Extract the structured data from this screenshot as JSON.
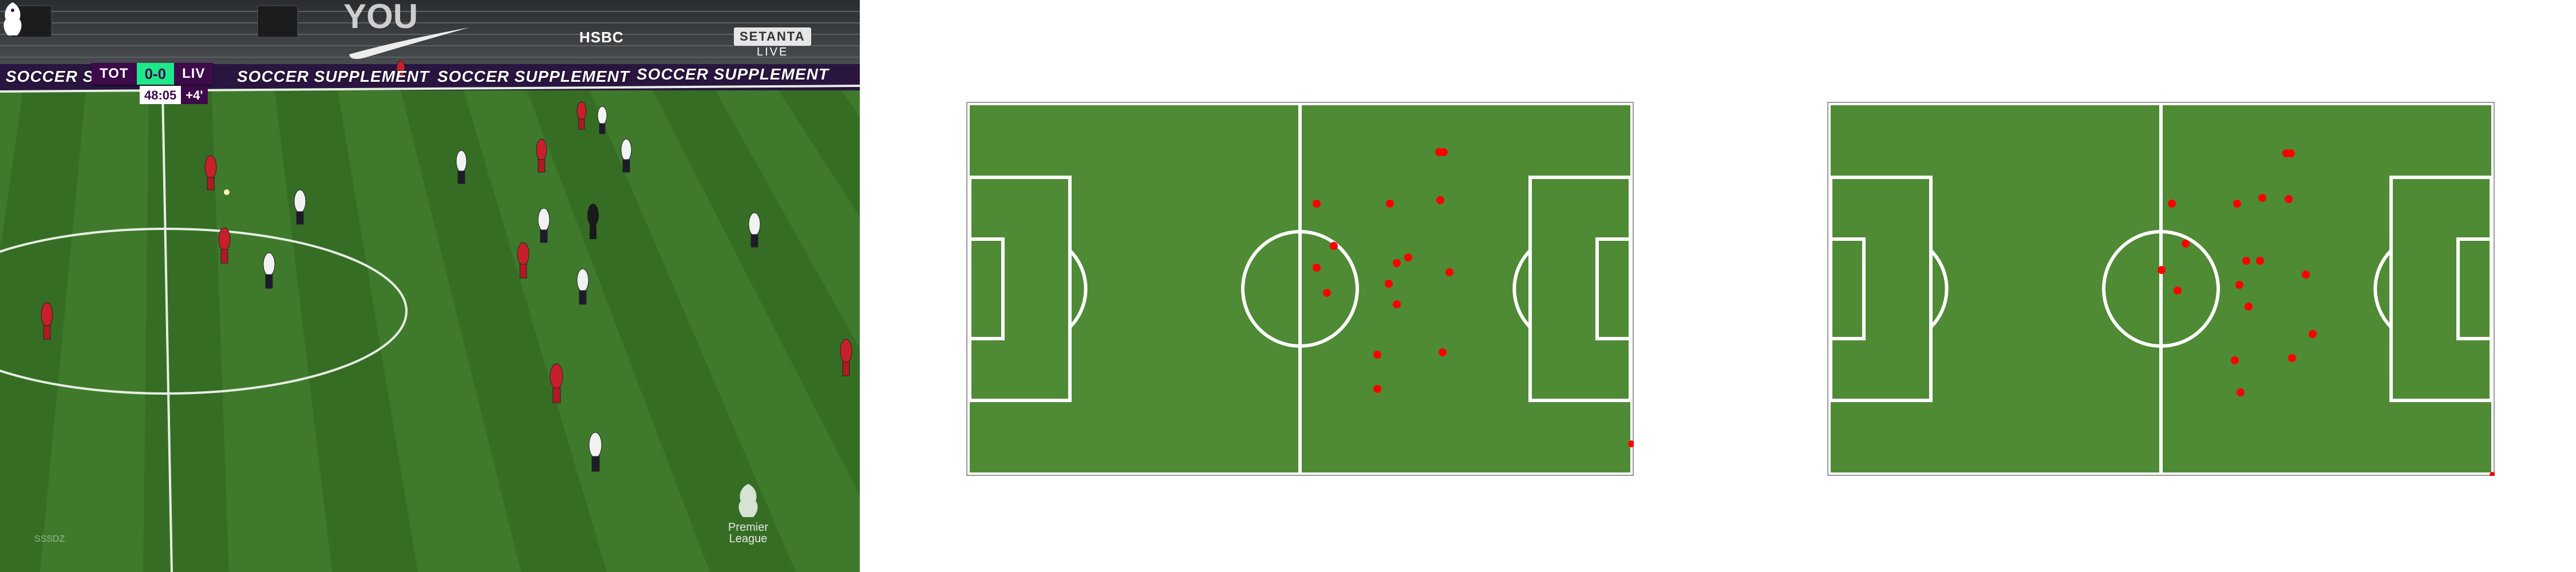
{
  "broadcast": {
    "home_team": "TOT",
    "away_team": "LIV",
    "score": "0-0",
    "clock": "48:05",
    "added_time": "+4'",
    "sponsor_board": "SOCCER SUPPLEMENT",
    "stand_lettering": "YOU",
    "stand_sponsor": "HSBC",
    "broadcaster": "SETANTA",
    "live_label": "LIVE",
    "league_logo": "Premier League",
    "watermark": "SSSDZ",
    "colors": {
      "scorebug_purple": "#3d0a4a",
      "score_green": "#1de98b",
      "pitch_light": "#3f7a2c",
      "pitch_dark": "#366d25",
      "liverpool_red": "#c8202a",
      "tottenham_white": "#f2f2f2"
    },
    "players_visible": 18
  },
  "minimap_1": {
    "pitch_color": "#4f8a35",
    "line_color": "#ffffff",
    "marker_color": "#ff0000",
    "marker_count": 20
  },
  "minimap_2": {
    "pitch_color": "#4f8a35",
    "line_color": "#ffffff",
    "marker_color": "#ff0000",
    "marker_count": 20
  }
}
